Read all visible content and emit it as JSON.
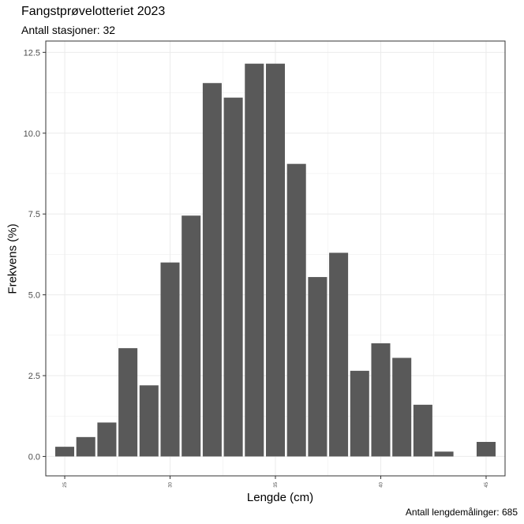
{
  "title": "Fangstprøvelotteriet 2023",
  "subtitle": "Antall stasjoner:  32",
  "caption": "Antall lengdemålinger: 685",
  "chart_data": {
    "type": "bar",
    "title": "Fangstprøvelotteriet 2023",
    "subtitle": "Antall stasjoner:  32",
    "xlabel": "Lengde (cm)",
    "ylabel": "Frekvens (%)",
    "x": [
      25,
      26,
      27,
      28,
      29,
      30,
      31,
      32,
      33,
      34,
      35,
      36,
      37,
      38,
      39,
      40,
      41,
      42,
      43,
      44,
      45
    ],
    "values": [
      0.3,
      0.6,
      1.05,
      3.35,
      2.2,
      6.0,
      7.45,
      11.55,
      11.1,
      12.15,
      12.15,
      9.05,
      5.55,
      6.3,
      2.65,
      3.5,
      3.05,
      1.6,
      0.15,
      0.0,
      0.45
    ],
    "xlim": [
      24.1,
      45.9
    ],
    "ylim": [
      -0.6,
      12.85
    ],
    "yticks": [
      0.0,
      2.5,
      5.0,
      7.5,
      10.0,
      12.5
    ],
    "ytick_labels": [
      "0.0",
      "2.5",
      "5.0",
      "7.5",
      "10.0",
      "12.5"
    ],
    "xticks": [
      25,
      30,
      35,
      40,
      45
    ],
    "xtick_labels": [
      "25",
      "30",
      "35",
      "40",
      "45"
    ],
    "grid": true,
    "bar_color": "#595959",
    "grid_color": "#ebebeb"
  }
}
